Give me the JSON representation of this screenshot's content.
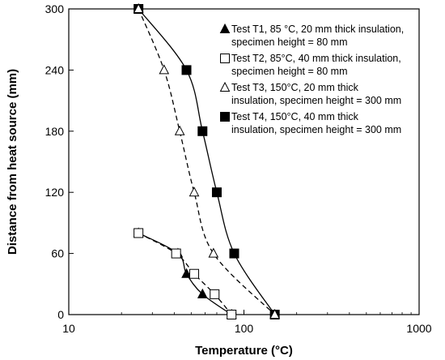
{
  "chart_data": {
    "type": "scatter",
    "xlabel": "Temperature (°C)",
    "ylabel": "Distance from heat source (mm)",
    "x_scale": "log",
    "xlim": [
      10,
      1000
    ],
    "ylim": [
      0,
      300
    ],
    "x_ticks": [
      10,
      100,
      1000
    ],
    "x_tick_labels": [
      "10",
      "100",
      "1000"
    ],
    "y_ticks": [
      0,
      60,
      120,
      180,
      240,
      300
    ],
    "y_tick_labels": [
      "0",
      "60",
      "120",
      "180",
      "240",
      "300"
    ],
    "grid": false,
    "legend_position": "top-right",
    "series": [
      {
        "name": "Test T1, 85 °C, 20 mm thick insulation, specimen height = 80 mm",
        "marker": "filled-triangle",
        "line": "solid",
        "color": "#000000",
        "points": [
          [
            25,
            80
          ],
          [
            42,
            60
          ],
          [
            47,
            40
          ],
          [
            58,
            20
          ],
          [
            85,
            0
          ]
        ]
      },
      {
        "name": "Test T2, 85°C, 40 mm thick insulation, specimen height = 80 mm",
        "marker": "open-square",
        "line": "dashed",
        "color": "#000000",
        "points": [
          [
            25,
            80
          ],
          [
            41,
            60
          ],
          [
            52,
            40
          ],
          [
            68,
            20
          ],
          [
            85,
            0
          ]
        ]
      },
      {
        "name": "Test T3, 150°C, 20 mm thick insulation, specimen height = 300 mm",
        "marker": "open-triangle",
        "line": "dashed",
        "color": "#000000",
        "points": [
          [
            25,
            300
          ],
          [
            35,
            240
          ],
          [
            43,
            180
          ],
          [
            52,
            120
          ],
          [
            67,
            60
          ],
          [
            150,
            0
          ]
        ]
      },
      {
        "name": "Test T4, 150°C, 40 mm thick insulation, specimen height = 300 mm",
        "marker": "filled-square",
        "line": "solid",
        "color": "#000000",
        "points": [
          [
            25,
            300
          ],
          [
            47,
            240
          ],
          [
            58,
            180
          ],
          [
            70,
            120
          ],
          [
            88,
            60
          ],
          [
            150,
            0
          ]
        ]
      }
    ],
    "legend_lines": [
      [
        "Test T1, 85 °C, 20 mm thick insulation,",
        "specimen height = 80 mm"
      ],
      [
        "Test T2, 85°C, 40 mm thick insulation,",
        "specimen height = 80 mm"
      ],
      [
        "Test T3, 150°C, 20 mm thick",
        "insulation, specimen height = 300 mm"
      ],
      [
        "Test T4, 150°C, 40 mm thick",
        "insulation, specimen height = 300 mm"
      ]
    ]
  }
}
